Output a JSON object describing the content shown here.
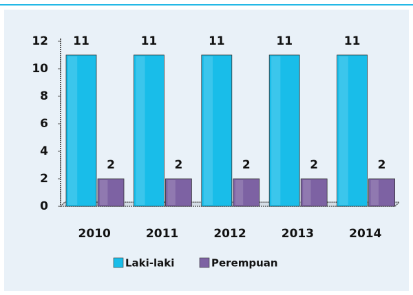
{
  "chart_data": {
    "type": "bar",
    "categories": [
      "2010",
      "2011",
      "2012",
      "2013",
      "2014"
    ],
    "series": [
      {
        "name": "Laki-laki",
        "color": "#19bde9",
        "values": [
          11,
          11,
          11,
          11,
          11
        ]
      },
      {
        "name": "Perempuan",
        "color": "#7d62a3",
        "values": [
          2,
          2,
          2,
          2,
          2
        ]
      }
    ],
    "ylim": [
      0,
      12
    ],
    "yticks": [
      0,
      2,
      4,
      6,
      8,
      10,
      12
    ],
    "legend": "bottom"
  }
}
